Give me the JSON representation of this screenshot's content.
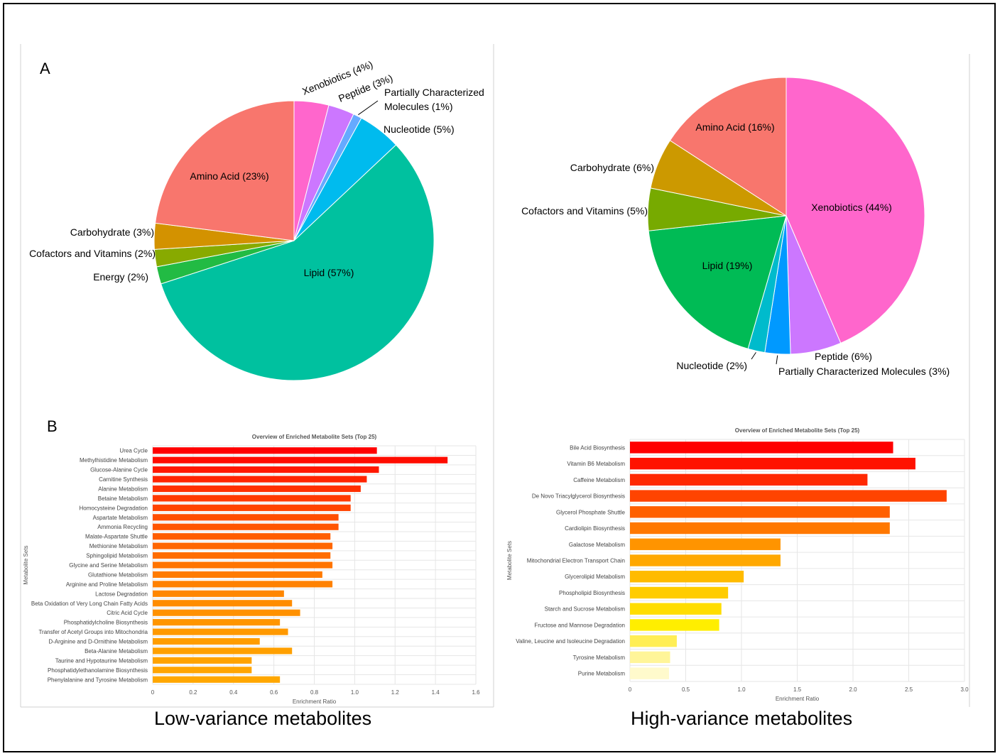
{
  "panels": {
    "a_label": "A",
    "b_label": "B"
  },
  "captions": {
    "left": "Low-variance metabolites",
    "right": "High-variance metabolites"
  },
  "chart_data": [
    {
      "id": "pie-low",
      "type": "pie",
      "slices": [
        {
          "label": "Xenobiotics (4%)",
          "value": 4,
          "color": "#ff66cc"
        },
        {
          "label": "Peptide (3%)",
          "value": 3,
          "color": "#cc77ff"
        },
        {
          "label": "Partially Characterized Molecules (1%)",
          "value": 1,
          "color": "#66aaff"
        },
        {
          "label": "Nucleotide (5%)",
          "value": 5,
          "color": "#00bbee"
        },
        {
          "label": "Lipid (57%)",
          "value": 57,
          "color": "#00c19f"
        },
        {
          "label": "Energy (2%)",
          "value": 2,
          "color": "#22bb44"
        },
        {
          "label": "Cofactors and Vitamins (2%)",
          "value": 2,
          "color": "#88aa00"
        },
        {
          "label": "Carbohydrate (3%)",
          "value": 3,
          "color": "#d39200"
        },
        {
          "label": "Amino Acid (23%)",
          "value": 23,
          "color": "#f8766d"
        }
      ]
    },
    {
      "id": "pie-high",
      "type": "pie",
      "slices": [
        {
          "label": "Xenobiotics (44%)",
          "value": 44,
          "color": "#ff66cc"
        },
        {
          "label": "Peptide (6%)",
          "value": 6,
          "color": "#cc77ff"
        },
        {
          "label": "Partially Characterized Molecules (3%)",
          "value": 3,
          "color": "#0099ff"
        },
        {
          "label": "Nucleotide (2%)",
          "value": 2,
          "color": "#00bbcc"
        },
        {
          "label": "Lipid (19%)",
          "value": 19,
          "color": "#00bb55"
        },
        {
          "label": "Cofactors and Vitamins (5%)",
          "value": 5,
          "color": "#77aa00"
        },
        {
          "label": "Carbohydrate (6%)",
          "value": 6,
          "color": "#cc9900"
        },
        {
          "label": "Amino Acid (16%)",
          "value": 16,
          "color": "#f8766d"
        }
      ]
    },
    {
      "id": "bar-low",
      "type": "bar",
      "orientation": "horizontal",
      "title": "Overview of Enriched Metabolite Sets (Top 25)",
      "xlabel": "Enrichment Ratio",
      "ylabel": "Metabolite Sets",
      "xlim": [
        0,
        1.6
      ],
      "xticks": [
        "0",
        "0.2",
        "0.4",
        "0.6",
        "0.8",
        "1.0",
        "1.2",
        "1.4",
        "1.6"
      ],
      "grid": true,
      "categories": [
        "Urea Cycle",
        "Methylhistidine Metabolism",
        "Glucose-Alanine Cycle",
        "Carnitine Synthesis",
        "Alanine Metabolism",
        "Betaine Metabolism",
        "Homocysteine Degradation",
        "Aspartate Metabolism",
        "Ammonia Recycling",
        "Malate-Aspartate Shuttle",
        "Methionine Metabolism",
        "Sphingolipid Metabolism",
        "Glycine and Serine Metabolism",
        "Glutathione Metabolism",
        "Arginine and Proline Metabolism",
        "Lactose Degradation",
        "Beta Oxidation of Very Long Chain Fatty Acids",
        "Citric Acid Cycle",
        "Phosphatidylcholine Biosynthesis",
        "Transfer of Acetyl Groups into Mitochondria",
        "D-Arginine and D-Ornithine Metabolism",
        "Beta-Alanine Metabolism",
        "Taurine and Hypotaurine Metabolism",
        "Phosphatidylethanolamine Biosynthesis",
        "Phenylalanine and Tyrosine Metabolism"
      ],
      "values": [
        1.11,
        1.46,
        1.12,
        1.06,
        1.03,
        0.98,
        0.98,
        0.92,
        0.92,
        0.88,
        0.89,
        0.88,
        0.89,
        0.84,
        0.89,
        0.65,
        0.69,
        0.73,
        0.63,
        0.67,
        0.53,
        0.69,
        0.49,
        0.49,
        0.63
      ],
      "colors": [
        "#ff0000",
        "#ff0c00",
        "#ff1800",
        "#ff2400",
        "#ff3000",
        "#ff3a00",
        "#ff4400",
        "#ff4e00",
        "#ff5600",
        "#ff5e00",
        "#ff6600",
        "#ff6d00",
        "#ff7400",
        "#ff7b00",
        "#ff8100",
        "#ff8700",
        "#ff8c00",
        "#ff9100",
        "#ff9500",
        "#ff9900",
        "#ff9d00",
        "#ffa000",
        "#ffa300",
        "#ffa500",
        "#ffa700"
      ]
    },
    {
      "id": "bar-high",
      "type": "bar",
      "orientation": "horizontal",
      "title": "Overview of Enriched Metabolite Sets (Top 25)",
      "xlabel": "Enrichment Ratio",
      "ylabel": "Metabolite Sets",
      "xlim": [
        0,
        3.0
      ],
      "xticks": [
        "0",
        "0.5",
        "1.0",
        "1.5",
        "2.0",
        "2.5",
        "3.0"
      ],
      "grid": true,
      "categories": [
        "Bile Acid Biosynthesis",
        "Vitamin B6 Metabolism",
        "Caffeine Metabolism",
        "De Novo Triacylglycerol Biosynthesis",
        "Glycerol Phosphate Shuttle",
        "Cardiolipin Biosynthesis",
        "Galactose Metabolism",
        "Mitochondrial Electron Transport Chain",
        "Glycerolipid Metabolism",
        "Phospholipid Biosynthesis",
        "Starch and Sucrose Metabolism",
        "Fructose and Mannose Degradation",
        "Valine, Leucine and Isoleucine Degradation",
        "Tyrosine Metabolism",
        "Purine Metabolism"
      ],
      "values": [
        2.36,
        2.56,
        2.13,
        2.84,
        2.33,
        2.33,
        1.35,
        1.35,
        1.02,
        0.88,
        0.82,
        0.8,
        0.42,
        0.36,
        0.35
      ],
      "colors": [
        "#ff0000",
        "#ff1200",
        "#ff2800",
        "#ff4400",
        "#ff6000",
        "#ff7800",
        "#ff9400",
        "#ffa800",
        "#ffbb00",
        "#ffcc00",
        "#ffdd00",
        "#ffee00",
        "#ffee55",
        "#fff599",
        "#fffacc"
      ]
    }
  ]
}
